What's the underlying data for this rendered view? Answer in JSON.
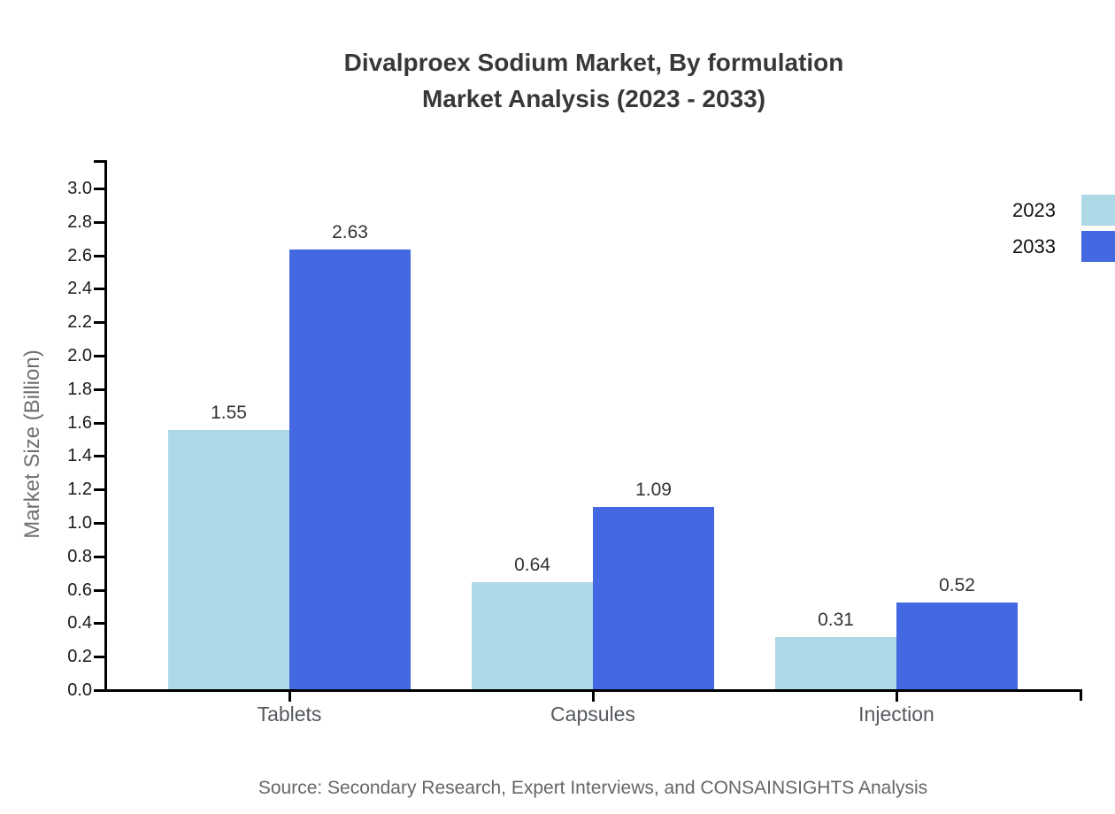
{
  "page": {
    "background": "#ffffff"
  },
  "header": {
    "title_line1": "Divalproex Sodium Market, By formulation",
    "title_line2": "Market Analysis (2023 - 2033)"
  },
  "footer": {
    "source": "Source: Secondary Research, Expert Interviews, and CONSAINSIGHTS Analysis"
  },
  "legend": {
    "position": "top-right",
    "items": [
      {
        "label": "2023",
        "color": "#ADD8E6"
      },
      {
        "label": "2033",
        "color": "#4368E2"
      }
    ]
  },
  "chart_data": {
    "type": "bar",
    "title": "Divalproex Sodium Market, By formulation Market Analysis (2023 - 2033)",
    "categories": [
      "Tablets",
      "Capsules",
      "Injection"
    ],
    "series": [
      {
        "name": "2023",
        "color": "#ADD8E6",
        "values": [
          1.55,
          0.64,
          0.31
        ]
      },
      {
        "name": "2033",
        "color": "#4368E2",
        "values": [
          2.63,
          1.09,
          0.52
        ]
      }
    ],
    "xlabel": "",
    "ylabel": "Market Size (Billion)",
    "ylim": [
      0.0,
      3.0
    ],
    "ytick_step": 0.2,
    "ytick_labels": [
      "0.0",
      "0.2",
      "0.4",
      "0.6",
      "0.8",
      "1.0",
      "1.2",
      "1.4",
      "1.6",
      "1.8",
      "2.0",
      "2.2",
      "2.4",
      "2.6",
      "2.8",
      "3.0"
    ],
    "grid": false,
    "bar_value_labels_shown": true,
    "legend_position": "top-right"
  }
}
